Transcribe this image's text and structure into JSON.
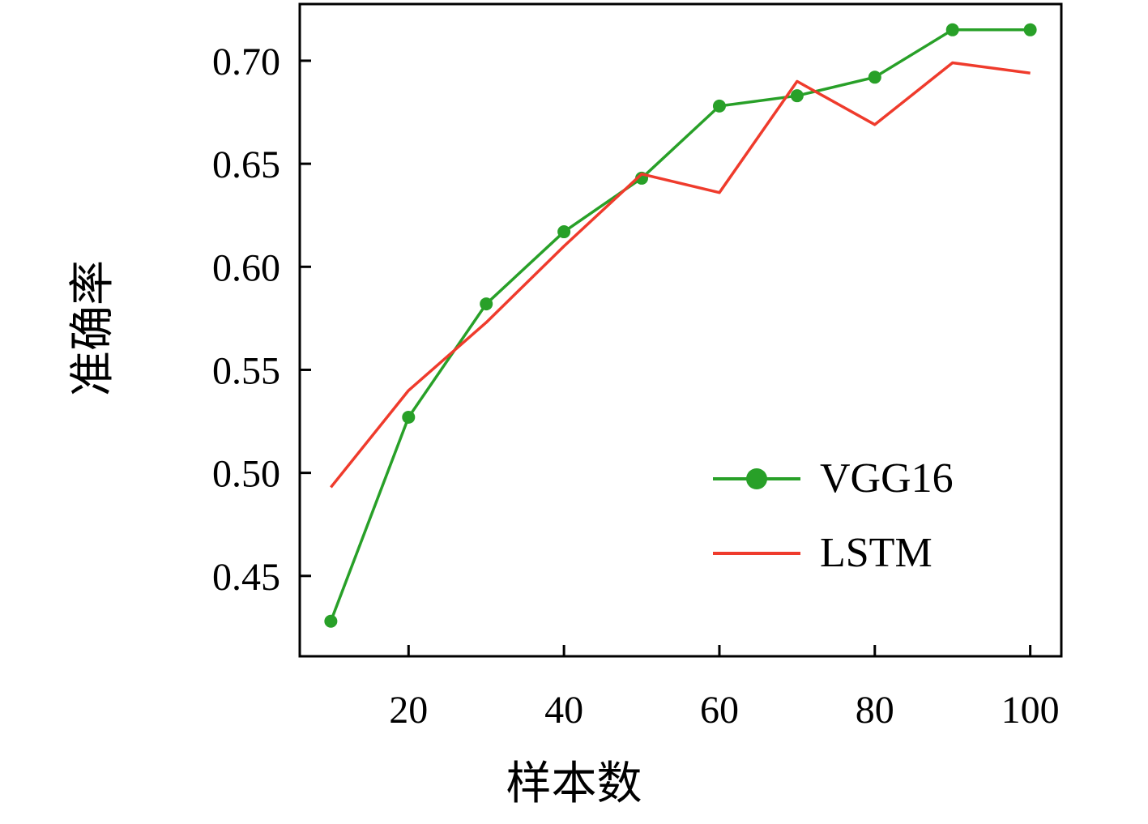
{
  "chart_data": {
    "type": "line",
    "title": "",
    "xlabel": "样本数",
    "ylabel": "准确率",
    "x": [
      10,
      20,
      30,
      40,
      50,
      60,
      70,
      80,
      90,
      100
    ],
    "series": [
      {
        "name": "VGG16",
        "color": "#28a028",
        "marker": "circle",
        "values": [
          0.428,
          0.527,
          0.582,
          0.617,
          0.643,
          0.678,
          0.683,
          0.692,
          0.715,
          0.715
        ]
      },
      {
        "name": "LSTM",
        "color": "#ef3b2c",
        "marker": "none",
        "values": [
          0.493,
          0.54,
          0.573,
          0.61,
          0.645,
          0.636,
          0.69,
          0.669,
          0.699,
          0.694
        ]
      }
    ],
    "xlim": [
      6,
      104
    ],
    "ylim": [
      0.411,
      0.7275
    ],
    "xticks": [
      20,
      40,
      60,
      80,
      100
    ],
    "yticks": [
      0.45,
      0.5,
      0.55,
      0.6,
      0.65,
      0.7
    ],
    "grid": false,
    "legend_position": "lower right",
    "axis_color": "#000000"
  }
}
